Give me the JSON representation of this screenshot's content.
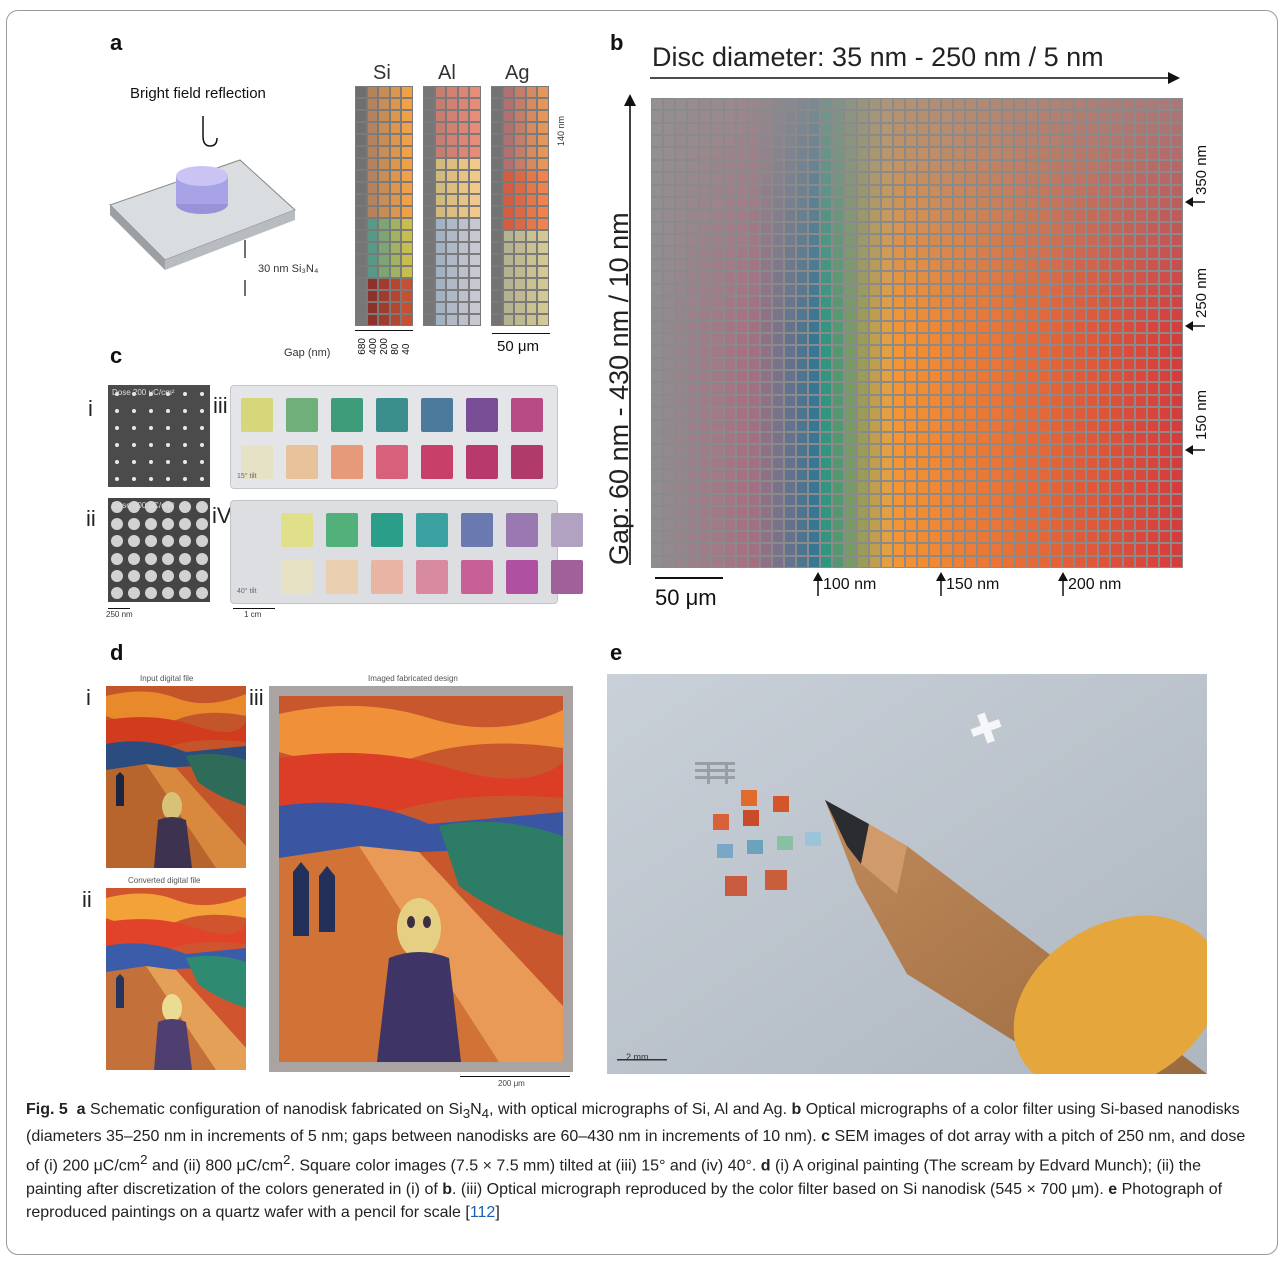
{
  "panels": {
    "a": {
      "label": "a",
      "bright_field": "Bright field reflection",
      "layer_label": "30 nm Si₃N₄",
      "columns": [
        "Si",
        "Al",
        "Ag"
      ],
      "gap_label": "Gap (nm)",
      "gap_ticks": [
        "680",
        "400",
        "200",
        "80",
        "40"
      ],
      "side_marker": "140 nm",
      "scalebar": "50 μm"
    },
    "b": {
      "label": "b",
      "top_title": "Disc diameter: 35 nm - 250 nm / 5 nm",
      "left_title": "Gap: 60 nm - 430 nm / 10 nm",
      "right_markers": [
        "350 nm",
        "250 nm",
        "150 nm"
      ],
      "bottom_markers": [
        "100 nm",
        "150 nm",
        "200 nm"
      ],
      "scalebar": "50 μm"
    },
    "c": {
      "label": "c",
      "rows": [
        "i",
        "ii"
      ],
      "photos": [
        "iii",
        "iV"
      ],
      "dose_i": "Dose 200 μC/cm²",
      "dose_ii": "Dose 800 μC/cm²",
      "tilt_iii": "15° tilt",
      "tilt_iv": "40° tilt",
      "scale_sem": "250 nm",
      "scale_photo": "1 cm"
    },
    "d": {
      "label": "d",
      "i_label": "i",
      "ii_label": "ii",
      "iii_label": "iii",
      "title_i": "Input digital file",
      "title_ii": "Converted digital file",
      "title_iii": "Imaged fabricated design",
      "scalebar": "200 μm"
    },
    "e": {
      "label": "e",
      "scalebar": "2 mm"
    }
  },
  "caption": {
    "fig": "Fig. 5",
    "a_lead": "a",
    "a_text_1": " Schematic configuration of nanodisk fabricated on Si",
    "a_sub1": "3",
    "a_text_2": "N",
    "a_sub2": "4",
    "a_text_3": ", with optical micrographs of Si, Al and Ag. ",
    "b_lead": "b",
    "b_text": " Optical micrographs of a color filter using Si-based nanodisks (diameters 35–250 nm in increments of 5 nm; gaps between nanodisks are 60–430 nm in increments of 10 nm). ",
    "c_lead": "c",
    "c_text_1": " SEM images of dot array with a pitch of 250 nm, and dose of (i) 200 μC/cm",
    "c_sup1": "2",
    "c_text_2": " and (ii) 800 μC/cm",
    "c_sup2": "2",
    "c_text_3": ". Square color images (7.5 × 7.5 mm) tilted at (iii) 15° and (iv) 40°. ",
    "d_lead": "d",
    "d_text_1": " (i) A original painting (The scream by Edvard Munch); (ii) the painting after discretization of the colors generated in (i) of ",
    "d_ref_b": "b",
    "d_text_2": ". (iii) Optical micrograph reproduced by the color filter based on Si nanodisk (545 × 700 μm). ",
    "e_lead": "e",
    "e_text": " Photograph of reproduced paintings on a quartz wafer with a pencil for scale [",
    "ref": "112",
    "end": "]"
  }
}
